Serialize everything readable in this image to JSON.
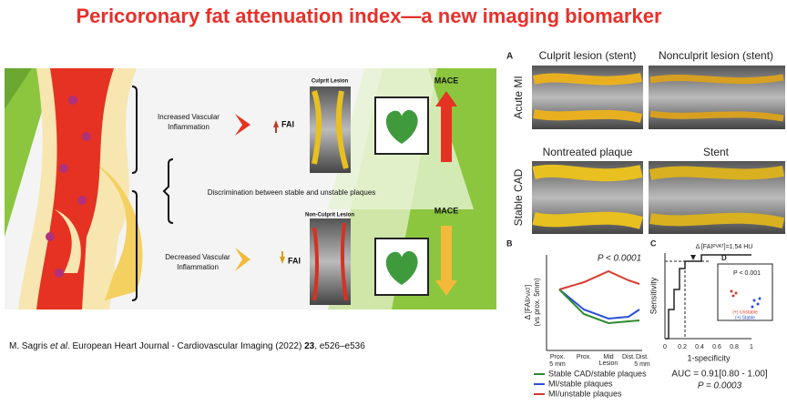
{
  "title": "Pericoronary fat attenuation index—a new imaging biomarker",
  "left_figure": {
    "increased": [
      "Increased Vascular",
      "Inflammation"
    ],
    "fai_up": "FAI",
    "culprit": "Culprit Lesion",
    "mace_top": "MACE",
    "discrimination": "Discrimination between stable and unstable plaques",
    "nonculprit": "Non-Culprit Lesion",
    "mace_bottom": "MACE",
    "decreased": [
      "Decreased Vascular",
      "Inflammation"
    ],
    "fai_down": "FAI"
  },
  "citation": {
    "authors": "M. Sagris ",
    "etal": "et al",
    "journal": ".  European Heart Journal - Cardiovascular Imaging (2022) ",
    "volume": "23",
    "pages": ", e526–e536"
  },
  "panel_a": {
    "letter": "A",
    "col1": "Culprit lesion (stent)",
    "col2": "Nonculprit lesion (stent)",
    "row1": "Acute MI",
    "row2": "Stable CAD",
    "col3": "Nontreated plaque",
    "col4": "Stent"
  },
  "panel_b": {
    "letter": "B",
    "p": "P < 0.0001",
    "ylabel_pre": "Δ [FAI",
    "ylabel_sub": "PVAT",
    "ylabel_post": "]",
    "ylabel2": "(vs prox. 5mm)",
    "categories": [
      [
        "Prox.",
        "5 mm"
      ],
      [
        "Prox."
      ],
      [
        "Mid"
      ],
      [
        "Dist."
      ],
      [
        "Dist.",
        "5 mm"
      ]
    ],
    "group": "Lesion",
    "legend": [
      "Stable CAD/stable plaques",
      "MI/stable plaques",
      "MI/unstable plaques"
    ]
  },
  "panel_c": {
    "letter": "C",
    "threshold_pre": "Δ [FAI",
    "threshold_sub": "PVAT",
    "threshold_post": "]=1.54 HU",
    "ylabel": "Sensitivity",
    "xlabel": "1-specificity",
    "xticks": [
      "0",
      "0.2",
      "0.4",
      "0.6",
      "0.8",
      "1"
    ],
    "auc": "AUC = 0.91[0.80 - 1.00]",
    "p": "P = 0.0003"
  },
  "panel_d": {
    "letter": "D",
    "p": "P < 0.001",
    "unstable": "(+) Unstable",
    "stable": "(+) Stable"
  }
}
